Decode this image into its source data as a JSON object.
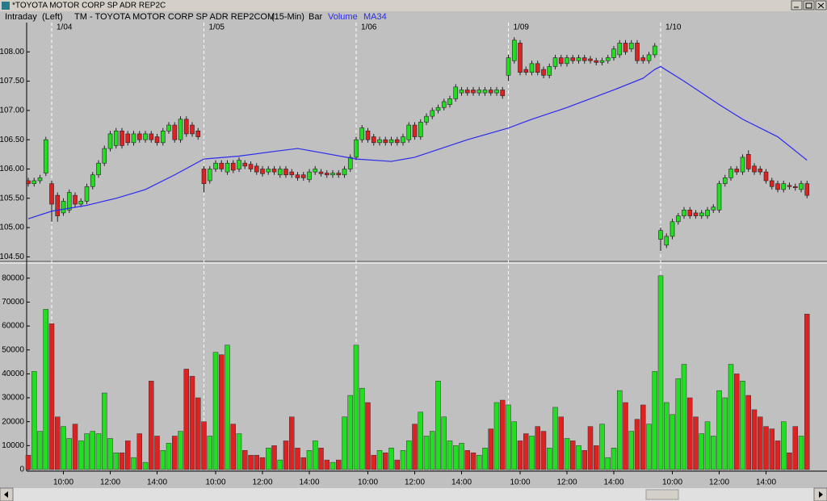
{
  "window_title": "*TOYOTA MOTOR CORP SP ADR REP2C",
  "header": {
    "mode": "Intraday",
    "axis_side": "(Left)",
    "symbol": "TM - TOYOTA MOTOR CORP SP ADR REP2COM",
    "interval": "(15-Min)",
    "style": "Bar"
  },
  "chart_data": [
    {
      "type": "candlestick",
      "categories": [
        null,
        null,
        null,
        null,
        "1/04",
        null,
        null,
        null,
        null,
        null,
        null,
        null,
        null,
        null,
        null,
        null,
        null,
        null,
        null,
        null,
        null,
        null,
        null,
        null,
        null,
        null,
        null,
        null,
        null,
        null,
        "1/05",
        null,
        null,
        null,
        null,
        null,
        null,
        null,
        null,
        null,
        null,
        null,
        null,
        null,
        null,
        null,
        null,
        null,
        null,
        null,
        null,
        null,
        null,
        null,
        null,
        null,
        "1/06",
        null,
        null,
        null,
        null,
        null,
        null,
        null,
        null,
        null,
        null,
        null,
        null,
        null,
        null,
        null,
        null,
        null,
        null,
        null,
        null,
        null,
        null,
        null,
        null,
        null,
        "1/09",
        null,
        null,
        null,
        null,
        null,
        null,
        null,
        null,
        null,
        null,
        null,
        null,
        null,
        null,
        null,
        null,
        null,
        null,
        null,
        null,
        null,
        null,
        null,
        null,
        null,
        "1/10",
        null,
        null,
        null,
        null,
        null,
        null,
        null,
        null,
        null,
        null,
        null,
        null,
        null,
        null,
        null,
        null,
        null,
        null,
        null,
        null,
        null,
        null,
        null,
        null,
        null
      ],
      "open": [
        105.8,
        105.75,
        105.8,
        105.93,
        105.75,
        105.55,
        105.25,
        105.3,
        105.55,
        105.4,
        105.45,
        105.7,
        105.9,
        106.1,
        106.35,
        106.4,
        106.65,
        106.6,
        106.45,
        106.6,
        106.5,
        106.6,
        106.55,
        106.45,
        106.65,
        106.75,
        106.5,
        106.85,
        106.75,
        106.65,
        106.0,
        105.8,
        106.0,
        106.1,
        105.95,
        106.1,
        106.0,
        106.1,
        106.08,
        106.05,
        106.0,
        105.95,
        106.0,
        105.9,
        106.0,
        105.95,
        105.9,
        105.9,
        105.82,
        105.95,
        105.95,
        105.93,
        105.9,
        105.93,
        105.9,
        106.0,
        106.2,
        106.5,
        106.65,
        106.55,
        106.45,
        106.5,
        106.45,
        106.5,
        106.45,
        106.5,
        106.75,
        106.55,
        106.8,
        106.9,
        107.0,
        107.05,
        107.1,
        107.2,
        107.3,
        107.35,
        107.35,
        107.3,
        107.3,
        107.35,
        107.3,
        107.35,
        107.6,
        107.85,
        108.15,
        107.7,
        107.65,
        107.8,
        107.7,
        107.6,
        107.75,
        107.9,
        107.8,
        107.9,
        107.85,
        107.9,
        107.88,
        107.85,
        107.82,
        107.85,
        107.9,
        107.95,
        108.15,
        108.05,
        108.15,
        107.9,
        107.85,
        107.95,
        104.8,
        104.7,
        104.85,
        105.1,
        105.2,
        105.3,
        105.25,
        105.2,
        105.2,
        105.3,
        105.3,
        105.75,
        105.85,
        106.0,
        105.95,
        106.25,
        106.05,
        106.0,
        105.95,
        105.8,
        105.75,
        105.65,
        105.72,
        105.7,
        105.65,
        105.75
      ],
      "high": [
        105.85,
        105.85,
        105.9,
        106.55,
        105.8,
        105.6,
        105.5,
        105.65,
        105.6,
        105.5,
        105.75,
        105.95,
        106.15,
        106.4,
        106.65,
        106.7,
        106.7,
        106.65,
        106.65,
        106.65,
        106.65,
        106.65,
        106.6,
        106.7,
        106.8,
        106.8,
        106.9,
        106.9,
        106.8,
        106.7,
        106.05,
        106.05,
        106.15,
        106.15,
        106.15,
        106.15,
        106.2,
        106.15,
        106.13,
        106.1,
        106.05,
        106.05,
        106.05,
        106.05,
        106.05,
        106.0,
        105.95,
        105.95,
        106.0,
        106.05,
        106.0,
        105.98,
        105.98,
        105.98,
        106.05,
        106.25,
        106.55,
        106.75,
        106.7,
        106.6,
        106.55,
        106.55,
        106.55,
        106.55,
        106.6,
        106.8,
        106.8,
        106.85,
        106.95,
        107.05,
        107.1,
        107.2,
        107.25,
        107.45,
        107.4,
        107.4,
        107.4,
        107.4,
        107.4,
        107.4,
        107.4,
        107.4,
        107.95,
        108.25,
        108.2,
        107.75,
        107.85,
        107.85,
        107.75,
        107.8,
        107.95,
        107.95,
        107.95,
        107.95,
        107.95,
        107.95,
        107.93,
        107.9,
        107.9,
        107.95,
        108.1,
        108.2,
        108.2,
        108.2,
        108.2,
        107.95,
        108.0,
        108.15,
        105.0,
        104.9,
        105.15,
        105.25,
        105.35,
        105.35,
        105.3,
        105.3,
        105.35,
        105.4,
        105.8,
        105.9,
        106.05,
        106.05,
        106.25,
        106.32,
        106.1,
        106.05,
        106.0,
        105.85,
        105.8,
        105.8,
        105.77,
        105.75,
        105.8,
        105.8
      ],
      "low": [
        105.7,
        105.7,
        105.75,
        105.88,
        105.1,
        105.1,
        105.2,
        105.25,
        105.35,
        105.35,
        105.4,
        105.65,
        105.85,
        106.05,
        106.3,
        106.35,
        106.35,
        106.4,
        106.4,
        106.45,
        106.45,
        106.45,
        106.4,
        106.4,
        106.6,
        106.45,
        106.45,
        106.55,
        106.55,
        106.5,
        105.6,
        105.75,
        105.95,
        105.95,
        105.9,
        105.93,
        105.95,
        106.0,
        105.95,
        105.9,
        105.87,
        105.9,
        105.9,
        105.85,
        105.85,
        105.85,
        105.8,
        105.8,
        105.77,
        105.9,
        105.87,
        105.85,
        105.85,
        105.85,
        105.85,
        105.95,
        106.15,
        106.45,
        106.45,
        106.4,
        106.4,
        106.4,
        106.4,
        106.4,
        106.4,
        106.45,
        106.5,
        106.5,
        106.75,
        106.85,
        106.95,
        107.0,
        107.05,
        107.15,
        107.25,
        107.25,
        107.25,
        107.25,
        107.25,
        107.25,
        107.25,
        107.2,
        107.5,
        107.8,
        107.6,
        107.6,
        107.6,
        107.6,
        107.55,
        107.55,
        107.7,
        107.75,
        107.75,
        107.8,
        107.8,
        107.8,
        107.8,
        107.77,
        107.77,
        107.8,
        107.85,
        107.9,
        107.95,
        108.0,
        107.8,
        107.8,
        107.8,
        107.9,
        104.6,
        104.65,
        104.8,
        105.05,
        105.15,
        105.15,
        105.15,
        105.15,
        105.15,
        105.25,
        105.25,
        105.7,
        105.8,
        105.9,
        105.9,
        105.95,
        105.9,
        105.9,
        105.75,
        105.65,
        105.6,
        105.6,
        105.65,
        105.63,
        105.6,
        105.5
      ],
      "close": [
        105.75,
        105.8,
        105.85,
        106.5,
        105.4,
        105.2,
        105.45,
        105.6,
        105.4,
        105.45,
        105.7,
        105.9,
        106.1,
        106.35,
        106.6,
        106.65,
        106.4,
        106.45,
        106.6,
        106.5,
        106.6,
        106.5,
        106.45,
        106.65,
        106.75,
        106.5,
        106.85,
        106.6,
        106.6,
        106.55,
        105.75,
        106.0,
        106.1,
        106.0,
        106.1,
        105.98,
        106.15,
        106.05,
        106.0,
        105.95,
        105.92,
        106.0,
        105.95,
        106.0,
        105.9,
        105.9,
        105.85,
        105.85,
        105.95,
        106.0,
        105.92,
        105.9,
        105.93,
        105.9,
        106.0,
        106.2,
        106.5,
        106.7,
        106.5,
        106.45,
        106.5,
        106.45,
        106.5,
        106.45,
        106.55,
        106.75,
        106.55,
        106.8,
        106.9,
        107.0,
        107.05,
        107.15,
        107.2,
        107.4,
        107.35,
        107.3,
        107.3,
        107.35,
        107.35,
        107.3,
        107.35,
        107.25,
        107.9,
        108.2,
        107.65,
        107.65,
        107.8,
        107.65,
        107.6,
        107.75,
        107.9,
        107.8,
        107.9,
        107.85,
        107.9,
        107.85,
        107.85,
        107.82,
        107.85,
        107.9,
        108.05,
        108.15,
        108.0,
        108.15,
        107.85,
        107.85,
        107.95,
        108.1,
        104.95,
        104.85,
        105.1,
        105.2,
        105.3,
        105.2,
        105.2,
        105.25,
        105.3,
        105.35,
        105.75,
        105.85,
        106.0,
        105.95,
        106.2,
        106.0,
        105.95,
        105.95,
        105.8,
        105.7,
        105.65,
        105.75,
        105.7,
        105.68,
        105.75,
        105.55
      ],
      "up_color": "#22dd22",
      "down_color": "#dd2222",
      "series": [
        {
          "name": "MA34",
          "color": "#2a2aee",
          "x": [
            0,
            4,
            10,
            15,
            20,
            25,
            30,
            36,
            42,
            46,
            50,
            56,
            62,
            66,
            75,
            82,
            86,
            92,
            100,
            105,
            107,
            108,
            112,
            118,
            122,
            128,
            133
          ],
          "values": [
            105.15,
            105.28,
            105.38,
            105.5,
            105.65,
            105.9,
            106.17,
            106.22,
            106.3,
            106.35,
            106.28,
            106.17,
            106.13,
            106.2,
            106.5,
            106.7,
            106.85,
            107.05,
            107.35,
            107.55,
            107.7,
            107.75,
            107.5,
            107.1,
            106.85,
            106.55,
            106.15
          ]
        }
      ],
      "ylim": [
        104.45,
        108.5
      ],
      "yticks": [
        {
          "value": 104.5,
          "label": "104.50"
        },
        {
          "value": 105,
          "label": "105.00"
        },
        {
          "value": 105.5,
          "label": "105.50"
        },
        {
          "value": 106,
          "label": "106.00"
        },
        {
          "value": 106.5,
          "label": "106.50"
        },
        {
          "value": 107,
          "label": "107.00"
        },
        {
          "value": 107.5,
          "label": "107.50"
        },
        {
          "value": 108,
          "label": "108.00"
        }
      ]
    },
    {
      "type": "bar",
      "name": "Volume",
      "categories": [
        null,
        null,
        null,
        null,
        null,
        null,
        "10:00",
        null,
        null,
        null,
        null,
        null,
        null,
        null,
        "12:00",
        null,
        null,
        null,
        null,
        null,
        null,
        null,
        "14:00",
        null,
        null,
        null,
        null,
        null,
        null,
        null,
        null,
        null,
        "10:00",
        null,
        null,
        null,
        null,
        null,
        null,
        null,
        "12:00",
        null,
        null,
        null,
        null,
        null,
        null,
        null,
        "14:00",
        null,
        null,
        null,
        null,
        null,
        null,
        null,
        null,
        null,
        "10:00",
        null,
        null,
        null,
        null,
        null,
        null,
        null,
        "12:00",
        null,
        null,
        null,
        null,
        null,
        null,
        null,
        "14:00",
        null,
        null,
        null,
        null,
        null,
        null,
        null,
        null,
        null,
        "10:00",
        null,
        null,
        null,
        null,
        null,
        null,
        null,
        "12:00",
        null,
        null,
        null,
        null,
        null,
        null,
        null,
        "14:00",
        null,
        null,
        null,
        null,
        null,
        null,
        null,
        null,
        null,
        "10:00",
        null,
        null,
        null,
        null,
        null,
        null,
        null,
        "12:00",
        null,
        null,
        null,
        null,
        null,
        null,
        null,
        "14:00",
        null,
        null,
        null,
        null,
        null,
        null,
        null
      ],
      "values": [
        6000,
        41000,
        16000,
        67000,
        61000,
        22000,
        18000,
        13000,
        19000,
        12000,
        15000,
        16000,
        15000,
        32000,
        13000,
        7000,
        7000,
        12000,
        5000,
        15000,
        3000,
        37000,
        14000,
        8000,
        11000,
        14000,
        16000,
        42000,
        39000,
        30000,
        20000,
        14000,
        49000,
        48000,
        52000,
        19000,
        15000,
        8000,
        6000,
        6000,
        5000,
        9000,
        10000,
        4000,
        12000,
        22000,
        9000,
        5000,
        8000,
        12000,
        9000,
        4000,
        3000,
        4000,
        22000,
        31000,
        52000,
        34000,
        28000,
        6000,
        8000,
        7000,
        9000,
        4000,
        8000,
        12000,
        19000,
        24000,
        14000,
        16000,
        37000,
        22000,
        12000,
        10000,
        11000,
        8000,
        7000,
        6000,
        9000,
        17000,
        28000,
        29000,
        27000,
        20000,
        12000,
        15000,
        14000,
        18000,
        16000,
        9000,
        26000,
        22000,
        13000,
        12000,
        10000,
        8000,
        18000,
        10000,
        19000,
        5000,
        9000,
        33000,
        28000,
        16000,
        21000,
        27000,
        19000,
        41000,
        81000,
        28000,
        23000,
        38000,
        44000,
        30000,
        22000,
        15000,
        20000,
        14000,
        33000,
        30000,
        44000,
        40000,
        37000,
        31000,
        25000,
        22000,
        18000,
        17000,
        12000,
        20000,
        7000,
        18000,
        14000,
        65000
      ],
      "ylim": [
        0,
        86000
      ],
      "yticks": [
        0,
        10000,
        20000,
        30000,
        40000,
        50000,
        60000,
        70000,
        80000
      ]
    }
  ]
}
